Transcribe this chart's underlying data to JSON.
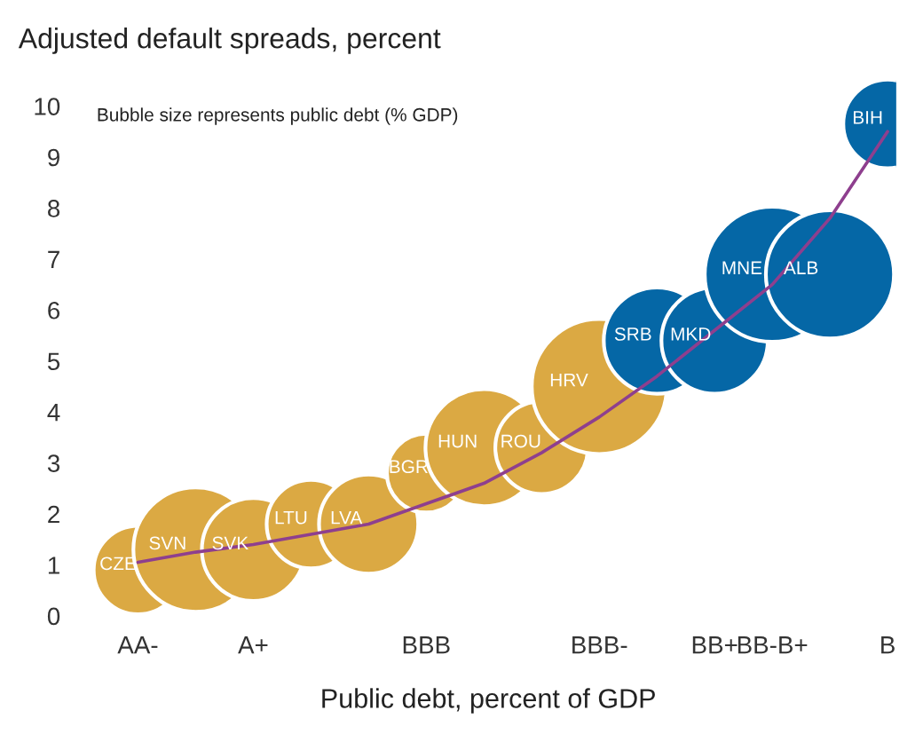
{
  "chart_data": {
    "type": "bubble",
    "title": "Adjusted default spreads, percent",
    "xlabel": "Public debt, percent of GDP",
    "categories": [
      "AA-",
      null,
      "A+",
      null,
      null,
      "BBB",
      null,
      null,
      "BBB-",
      null,
      "BB+",
      "BB-B+",
      null,
      "B"
    ],
    "ylim": [
      0,
      10
    ],
    "yticks": [
      0,
      1,
      2,
      3,
      4,
      5,
      6,
      7,
      8,
      9,
      10
    ],
    "grid": false,
    "legend": false,
    "series": [
      {
        "color": "#dba943",
        "values": [
          0.9,
          1.3,
          1.3,
          1.8,
          1.8,
          2.8,
          3.3,
          3.3,
          4.5,
          null,
          null,
          null,
          null,
          null
        ],
        "sizes": [
          0.43,
          0.85,
          0.58,
          0.43,
          0.54,
          0.34,
          0.75,
          0.47,
          1,
          null,
          null,
          null,
          null,
          null
        ],
        "value_labels": [
          "CZE",
          "SVN",
          "SVK",
          "LTU",
          "LVA",
          "BGR",
          "HUN",
          "ROU",
          "HRV",
          null,
          null,
          null,
          null,
          null
        ]
      },
      {
        "color": "#0567a6",
        "values": [
          null,
          null,
          null,
          null,
          null,
          null,
          null,
          null,
          null,
          5.4,
          5.4,
          6.7,
          6.7,
          9.65
        ],
        "sizes": [
          null,
          null,
          null,
          null,
          null,
          null,
          null,
          null,
          null,
          0.62,
          0.62,
          1,
          0.9,
          0.43
        ],
        "value_labels": [
          null,
          null,
          null,
          null,
          null,
          null,
          null,
          null,
          null,
          "SRB",
          "MKD",
          "MNE",
          "ALB",
          "BIH"
        ]
      },
      {
        "type": "line",
        "color": "#8e3f8e",
        "values": [
          1.05,
          1.25,
          1.4,
          1.6,
          1.8,
          2.2,
          2.6,
          3.2,
          3.9,
          4.7,
          5.6,
          6.5,
          7.8,
          9.5
        ]
      }
    ],
    "annotations": [
      "Bubble size represents public debt (% GDP)"
    ]
  }
}
